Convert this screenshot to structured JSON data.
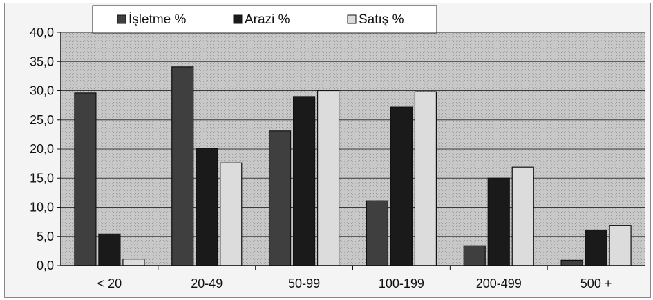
{
  "chart_data": {
    "type": "bar",
    "categories": [
      "< 20",
      "20-49",
      "50-99",
      "100-199",
      "200-499",
      "500 +"
    ],
    "series": [
      {
        "name": "İşletme %",
        "values": [
          29.6,
          34.1,
          23.1,
          11.1,
          3.4,
          0.9
        ],
        "color": "#3f3f3f"
      },
      {
        "name": "Arazi %",
        "values": [
          5.4,
          20.1,
          29.0,
          27.2,
          15.0,
          6.1
        ],
        "color": "#1a1a1a"
      },
      {
        "name": "Satış %",
        "values": [
          1.1,
          17.6,
          30.0,
          29.8,
          16.9,
          6.9
        ],
        "color": "#dcdcdc"
      }
    ],
    "yticks": [
      "0,0",
      "5,0",
      "10,0",
      "15,0",
      "20,0",
      "25,0",
      "30,0",
      "35,0",
      "40,0"
    ],
    "ylim": [
      0,
      40
    ],
    "grid": true,
    "legend_position": "top",
    "title": "",
    "xlabel": "",
    "ylabel": ""
  }
}
